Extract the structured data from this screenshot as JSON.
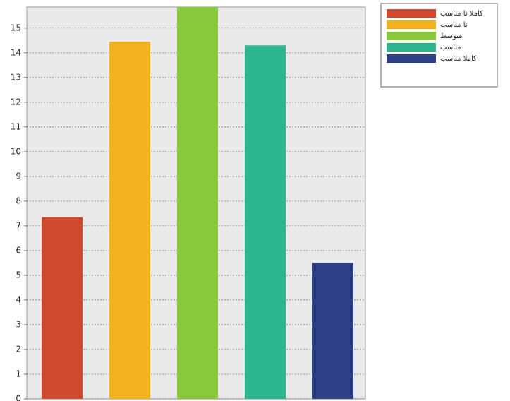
{
  "chart_data": {
    "type": "bar",
    "categories": [
      null
    ],
    "series": [
      {
        "name": "کاملا نا مناسب",
        "color": "#cf4a2f",
        "values": [
          7.35
        ]
      },
      {
        "name": "نا مناسب",
        "color": "#f2b21b",
        "values": [
          14.45
        ]
      },
      {
        "name": "متوسط",
        "color": "#86c83a",
        "values": [
          15.85
        ]
      },
      {
        "name": "مناسب",
        "color": "#2fb58e",
        "values": [
          14.3
        ]
      },
      {
        "name": "کاملا مناسب",
        "color": "#2f3f86",
        "values": [
          5.5
        ]
      }
    ],
    "ylim": [
      0,
      15.85
    ],
    "yticks": [
      0,
      1,
      2,
      3,
      4,
      5,
      6,
      7,
      8,
      9,
      10,
      11,
      12,
      13,
      14,
      15
    ],
    "grid": true,
    "legend": "top-right"
  }
}
